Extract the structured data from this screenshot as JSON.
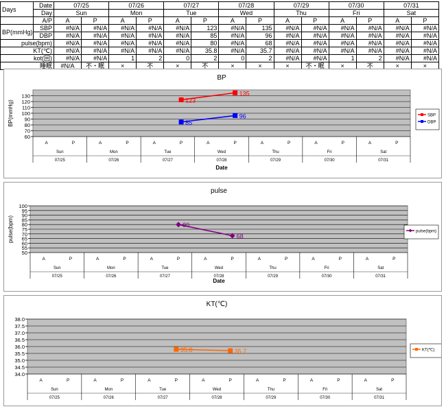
{
  "table": {
    "days_label": "Days",
    "date_label": "Date",
    "day_label": "Day",
    "ap_label": "A/P",
    "bp_label": "BP(mmHg)",
    "sbp_label": "SBP",
    "dbp_label": "DBP",
    "pulse_label": "pulse(bpm)",
    "kt_label": "KT(℃)",
    "kot_label": "kot(回)",
    "sleep_label": "睡眠",
    "dates": [
      "07/25",
      "07/26",
      "07/27",
      "07/28",
      "07/29",
      "07/30",
      "07/31"
    ],
    "days": [
      "Sun",
      "Mon",
      "Tue",
      "Wed",
      "Thu",
      "Fri",
      "Sat"
    ],
    "ap": [
      "A",
      "P",
      "A",
      "P",
      "A",
      "P",
      "A",
      "P",
      "A",
      "P",
      "A",
      "P",
      "A",
      "P"
    ],
    "sbp": [
      "#N/A",
      "#N/A",
      "#N/A",
      "#N/A",
      "#N/A",
      "123",
      "#N/A",
      "135",
      "#N/A",
      "#N/A",
      "#N/A",
      "#N/A",
      "#N/A",
      "#N/A"
    ],
    "dbp": [
      "#N/A",
      "#N/A",
      "#N/A",
      "#N/A",
      "#N/A",
      "85",
      "#N/A",
      "96",
      "#N/A",
      "#N/A",
      "#N/A",
      "#N/A",
      "#N/A",
      "#N/A"
    ],
    "pulse": [
      "#N/A",
      "#N/A",
      "#N/A",
      "#N/A",
      "#N/A",
      "80",
      "#N/A",
      "68",
      "#N/A",
      "#N/A",
      "#N/A",
      "#N/A",
      "#N/A",
      "#N/A"
    ],
    "kt": [
      "#N/A",
      "#N/A",
      "#N/A",
      "#N/A",
      "#N/A",
      "35.8",
      "#N/A",
      "35.7",
      "#N/A",
      "#N/A",
      "#N/A",
      "#N/A",
      "#N/A",
      "#N/A"
    ],
    "kot": [
      "#N/A",
      "#N/A",
      "1",
      "2",
      "0",
      "2",
      "0",
      "2",
      "#N/A",
      "#N/A",
      "1",
      "2",
      "#N/A",
      "#N/A"
    ],
    "sleep": [
      "#N/A",
      "不・眠",
      "×",
      "不",
      "×",
      "不",
      "×",
      "×",
      "×",
      "不・眠",
      "×",
      "不",
      "×",
      "×"
    ]
  },
  "colors": {
    "plot_bg": "#c0c0c0",
    "sbp": "#ff0000",
    "dbp": "#0000ff",
    "pulse": "#800080",
    "kt": "#ff6600"
  },
  "chart_data": [
    {
      "type": "line",
      "title": "BP",
      "xlabel": "Date",
      "ylabel": "BP(mmHg)",
      "ylim": [
        60,
        140
      ],
      "yticks": [
        60,
        70,
        80,
        90,
        100,
        110,
        120,
        130
      ],
      "categories": [
        "A",
        "P",
        "A",
        "P",
        "A",
        "P",
        "A",
        "P",
        "A",
        "P",
        "A",
        "P",
        "A",
        "P"
      ],
      "groups": [
        {
          "day": "Sun",
          "date": "07/25"
        },
        {
          "day": "Mon",
          "date": "07/26"
        },
        {
          "day": "Tue",
          "date": "07/27"
        },
        {
          "day": "Wed",
          "date": "07/28"
        },
        {
          "day": "Thu",
          "date": "07/29"
        },
        {
          "day": "Fri",
          "date": "07/30"
        },
        {
          "day": "Sat",
          "date": "07/31"
        }
      ],
      "legend_position": "right",
      "grid": true,
      "series": [
        {
          "name": "SBP",
          "values": [
            null,
            null,
            null,
            null,
            null,
            123,
            null,
            135,
            null,
            null,
            null,
            null,
            null,
            null
          ],
          "color": "#ff0000",
          "marker": "square"
        },
        {
          "name": "DBP",
          "values": [
            null,
            null,
            null,
            null,
            null,
            85,
            null,
            96,
            null,
            null,
            null,
            null,
            null,
            null
          ],
          "color": "#0000ff",
          "marker": "square"
        }
      ]
    },
    {
      "type": "line",
      "title": "pulse",
      "xlabel": "Date",
      "ylabel": "pulse(bpm)",
      "ylim": [
        50,
        100
      ],
      "yticks": [
        50,
        55,
        60,
        65,
        70,
        75,
        80,
        85,
        90,
        95,
        100
      ],
      "categories": [
        "A",
        "P",
        "A",
        "P",
        "A",
        "P",
        "A",
        "P",
        "A",
        "P",
        "A",
        "P",
        "A",
        "P"
      ],
      "groups": [
        {
          "day": "Sun",
          "date": "07/25"
        },
        {
          "day": "Mon",
          "date": "07/26"
        },
        {
          "day": "Tue",
          "date": "07/27"
        },
        {
          "day": "Wed",
          "date": "07/28"
        },
        {
          "day": "Thu",
          "date": "07/29"
        },
        {
          "day": "Fri",
          "date": "07/30"
        },
        {
          "day": "Sat",
          "date": "07/31"
        }
      ],
      "legend_position": "right",
      "grid": true,
      "series": [
        {
          "name": "pulse(bpm)",
          "values": [
            null,
            null,
            null,
            null,
            null,
            80,
            null,
            68,
            null,
            null,
            null,
            null,
            null,
            null
          ],
          "color": "#800080",
          "marker": "diamond"
        }
      ]
    },
    {
      "type": "line",
      "title": "KT(℃)",
      "xlabel": "",
      "ylabel": "",
      "ylim": [
        34.0,
        38.0
      ],
      "yticks": [
        "34.0",
        "34.5",
        "35.0",
        "35.5",
        "36.0",
        "36.5",
        "37.0",
        "37.5",
        "38.0"
      ],
      "categories": [
        "A",
        "P",
        "A",
        "P",
        "A",
        "P",
        "A",
        "P",
        "A",
        "P",
        "A",
        "P",
        "A",
        "P"
      ],
      "groups": [
        {
          "day": "Sun",
          "date": "07/25"
        },
        {
          "day": "Mon",
          "date": "07/26"
        },
        {
          "day": "Tue",
          "date": "07/27"
        },
        {
          "day": "Wed",
          "date": "07/28"
        },
        {
          "day": "Thu",
          "date": "07/29"
        },
        {
          "day": "Fri",
          "date": "07/30"
        },
        {
          "day": "Sat",
          "date": "07/31"
        }
      ],
      "legend_position": "right",
      "grid": true,
      "series": [
        {
          "name": "KT(℃)",
          "values": [
            null,
            null,
            null,
            null,
            null,
            35.8,
            null,
            35.7,
            null,
            null,
            null,
            null,
            null,
            null
          ],
          "color": "#ff6600",
          "marker": "square"
        }
      ]
    }
  ]
}
